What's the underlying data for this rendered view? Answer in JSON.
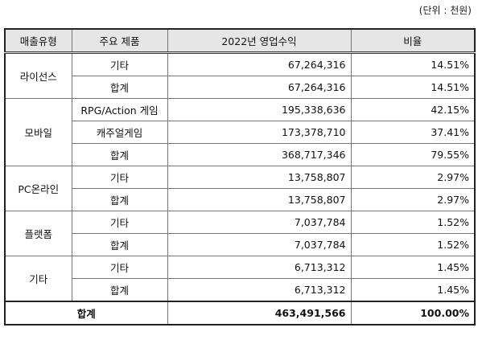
{
  "unit": "(단위 : 천원)",
  "table": {
    "header": [
      "매출유형",
      "주요 제품",
      "2022년 영업수익",
      "비율"
    ],
    "groups": [
      {
        "type": "라이선스",
        "rows": [
          {
            "product": "기타",
            "revenue": "67,264,316",
            "ratio": "14.51%"
          },
          {
            "product": "합계",
            "revenue": "67,264,316",
            "ratio": "14.51%"
          }
        ]
      },
      {
        "type": "모바일",
        "rows": [
          {
            "product": "RPG/Action 게임",
            "revenue": "195,338,636",
            "ratio": "42.15%"
          },
          {
            "product": "캐주얼게임",
            "revenue": "173,378,710",
            "ratio": "37.41%"
          },
          {
            "product": "합계",
            "revenue": "368,717,346",
            "ratio": "79.55%"
          }
        ]
      },
      {
        "type": "PC온라인",
        "rows": [
          {
            "product": "기타",
            "revenue": "13,758,807",
            "ratio": "2.97%"
          },
          {
            "product": "합계",
            "revenue": "13,758,807",
            "ratio": "2.97%"
          }
        ]
      },
      {
        "type": "플랫폼",
        "rows": [
          {
            "product": "기타",
            "revenue": "7,037,784",
            "ratio": "1.52%"
          },
          {
            "product": "합계",
            "revenue": "7,037,784",
            "ratio": "1.52%"
          }
        ]
      },
      {
        "type": "기타",
        "rows": [
          {
            "product": "기타",
            "revenue": "6,713,312",
            "ratio": "1.45%"
          },
          {
            "product": "합계",
            "revenue": "6,713,312",
            "ratio": "1.45%"
          }
        ]
      }
    ],
    "total": {
      "label": "합계",
      "revenue": "463,491,566",
      "ratio": "100.00%"
    }
  }
}
